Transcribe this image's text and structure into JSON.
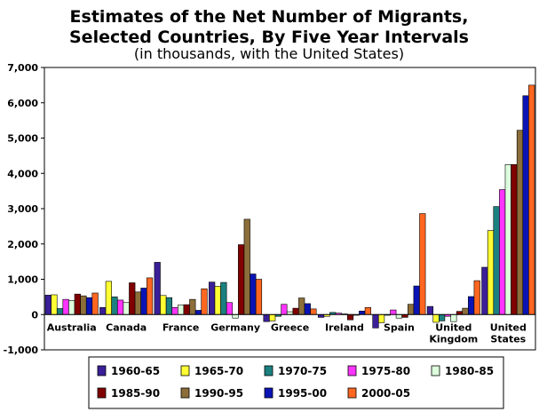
{
  "chart_data": {
    "type": "bar",
    "title_lines": [
      "Estimates of the Net Number of Migrants,",
      "Selected Countries, By Five Year Intervals"
    ],
    "subtitle": "(in thousands, with the United States)",
    "xlabel": "",
    "ylabel": "",
    "ylim": [
      -1000,
      7000
    ],
    "yticks": [
      -1000,
      0,
      1000,
      2000,
      3000,
      4000,
      5000,
      6000,
      7000
    ],
    "ytick_labels": [
      "-1,000",
      "0",
      "1,000",
      "2,000",
      "3,000",
      "4,000",
      "5,000",
      "6,000",
      "7,000"
    ],
    "grid": false,
    "legend_position": "bottom",
    "categories": [
      [
        "Australia"
      ],
      [
        "Canada"
      ],
      [
        "France"
      ],
      [
        "Germany"
      ],
      [
        "Greece"
      ],
      [
        "Ireland"
      ],
      [
        "Spain"
      ],
      [
        "United",
        "Kingdom"
      ],
      [
        "United",
        "States"
      ]
    ],
    "series": [
      {
        "name": "1960-65",
        "color": "#3a1f99",
        "values": [
          550,
          200,
          1480,
          920,
          -200,
          -80,
          -380,
          230,
          1340
        ]
      },
      {
        "name": "1965-70",
        "color": "#ffff33",
        "values": [
          560,
          940,
          540,
          800,
          -180,
          -50,
          -230,
          -220,
          2380
        ]
      },
      {
        "name": "1970-75",
        "color": "#1b8080",
        "values": [
          170,
          500,
          480,
          910,
          -50,
          60,
          -20,
          -180,
          3060
        ]
      },
      {
        "name": "1975-80",
        "color": "#ff33ff",
        "values": [
          430,
          410,
          200,
          340,
          290,
          40,
          130,
          -50,
          3540
        ]
      },
      {
        "name": "1980-85",
        "color": "#ddffdd",
        "values": [
          400,
          340,
          270,
          -100,
          80,
          20,
          -100,
          -200,
          4250
        ]
      },
      {
        "name": "1985-90",
        "color": "#800000",
        "values": [
          580,
          900,
          280,
          1980,
          180,
          -150,
          -80,
          90,
          4250
        ]
      },
      {
        "name": "1990-95",
        "color": "#8c6e3a",
        "values": [
          530,
          640,
          430,
          2700,
          470,
          -10,
          290,
          180,
          5220
        ]
      },
      {
        "name": "1995-00",
        "color": "#0a14b4",
        "values": [
          480,
          750,
          120,
          1150,
          310,
          100,
          810,
          510,
          6200
        ]
      },
      {
        "name": "2000-05",
        "color": "#ff6620",
        "values": [
          610,
          1040,
          730,
          1000,
          160,
          200,
          2860,
          960,
          6500
        ]
      }
    ]
  }
}
